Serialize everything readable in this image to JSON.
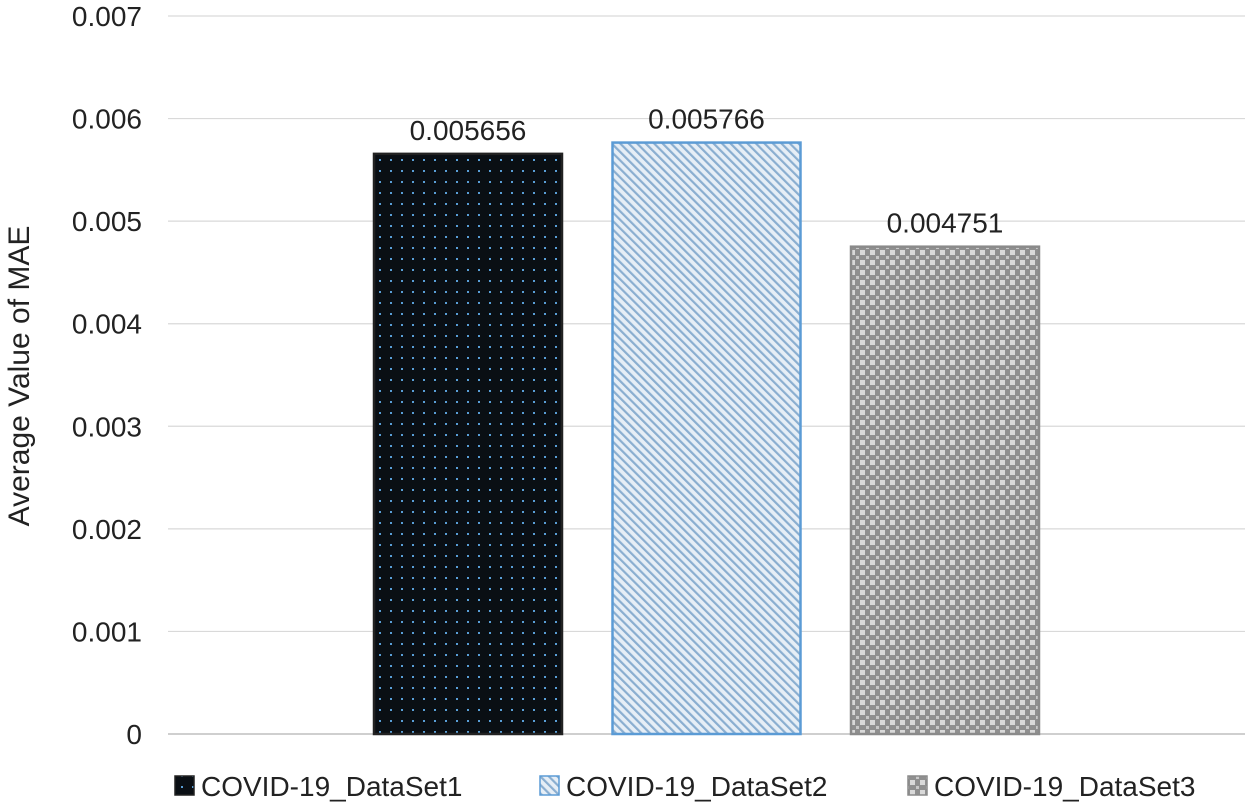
{
  "chart_data": {
    "type": "bar",
    "title": "",
    "xlabel": "",
    "ylabel": "Average Value of MAE",
    "ylim": [
      0,
      0.007
    ],
    "yticks": [
      "0",
      "0.001",
      "0.002",
      "0.003",
      "0.004",
      "0.005",
      "0.006",
      "0.007"
    ],
    "grid": true,
    "legend_position": "bottom",
    "series": [
      {
        "name": "COVID-19_DataSet1",
        "value": 0.005656,
        "label": "0.005656",
        "pattern": "dots",
        "fill": "#0a0f14",
        "accent": "#5aa0d8",
        "stroke": "#222222"
      },
      {
        "name": "COVID-19_DataSet2",
        "value": 0.005766,
        "label": "0.005766",
        "pattern": "diagonal",
        "fill": "#dbe6f1",
        "accent": "#7da3c8",
        "stroke": "#5b9bd5"
      },
      {
        "name": "COVID-19_DataSet3",
        "value": 0.004751,
        "label": "0.004751",
        "pattern": "checker",
        "fill": "#8f8f8f",
        "accent": "#dcdcdc",
        "stroke": "#8a8a8a"
      }
    ]
  }
}
